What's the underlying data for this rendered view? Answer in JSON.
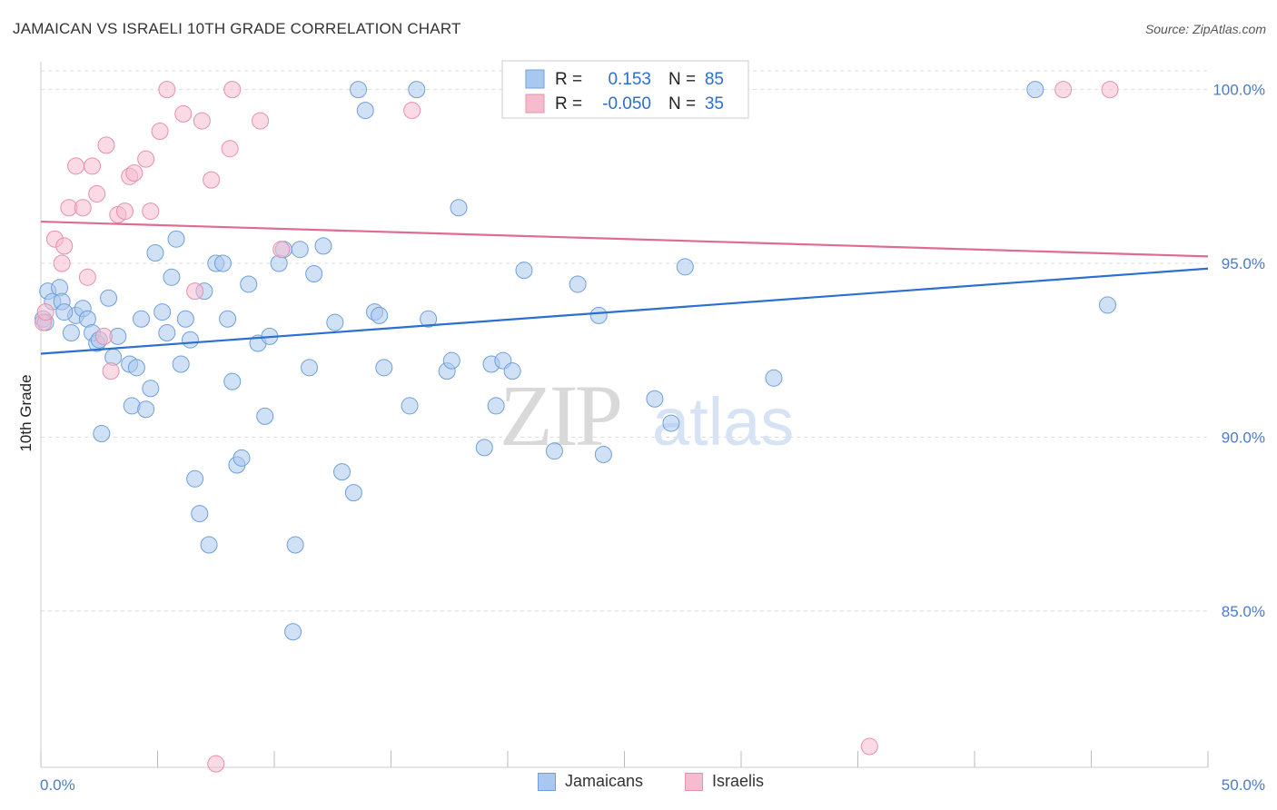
{
  "title": "JAMAICAN VS ISRAELI 10TH GRADE CORRELATION CHART",
  "source": "Source: ZipAtlas.com",
  "watermark": {
    "zip": "ZIP",
    "atlas": "atlas"
  },
  "colors": {
    "jamaicans_fill": "#a9c8ef",
    "jamaicans_stroke": "#6f9fdc",
    "jamaicans_line": "#2b6fd0",
    "israelis_fill": "#f5bccd",
    "israelis_stroke": "#e88fab",
    "israelis_line": "#e06a93",
    "tick_text": "#4a7cc8",
    "grid": "#dddddd"
  },
  "legend": {
    "rows": [
      {
        "r_label": "R =",
        "r_value": "0.153",
        "n_label": "N =",
        "n_value": "85"
      },
      {
        "r_label": "R =",
        "r_value": "-0.050",
        "n_label": "N =",
        "n_value": "35"
      }
    ]
  },
  "chart_data": {
    "type": "scatter",
    "title": "JAMAICAN VS ISRAELI 10TH GRADE CORRELATION CHART",
    "xlabel": "",
    "ylabel": "10th Grade",
    "xlim": [
      0,
      50
    ],
    "ylim": [
      80.5,
      100.8
    ],
    "x_tick_labels": [
      "0.0%",
      "50.0%"
    ],
    "y_ticks": [
      85,
      90,
      95,
      100
    ],
    "y_tick_labels": [
      "85.0%",
      "90.0%",
      "95.0%",
      "100.0%"
    ],
    "grid": true,
    "legend_position": "top-center",
    "series": [
      {
        "name": "Jamaicans",
        "r": 0.153,
        "n": 85,
        "trend": {
          "x": [
            0,
            50
          ],
          "y": [
            92.4,
            94.85
          ]
        },
        "points": [
          [
            0.1,
            93.4
          ],
          [
            0.3,
            94.2
          ],
          [
            0.5,
            93.9
          ],
          [
            0.8,
            94.3
          ],
          [
            0.9,
            93.9
          ],
          [
            1.3,
            93.0
          ],
          [
            1.5,
            93.5
          ],
          [
            1.8,
            93.7
          ],
          [
            2.0,
            93.4
          ],
          [
            2.2,
            93.0
          ],
          [
            2.4,
            92.7
          ],
          [
            2.6,
            90.1
          ],
          [
            2.9,
            94.0
          ],
          [
            3.1,
            92.3
          ],
          [
            3.3,
            92.9
          ],
          [
            3.8,
            92.1
          ],
          [
            3.9,
            90.9
          ],
          [
            4.1,
            92.0
          ],
          [
            4.3,
            93.4
          ],
          [
            4.5,
            90.8
          ],
          [
            4.7,
            91.4
          ],
          [
            4.9,
            95.3
          ],
          [
            5.2,
            93.6
          ],
          [
            5.4,
            93.0
          ],
          [
            5.6,
            94.6
          ],
          [
            5.8,
            95.7
          ],
          [
            6.0,
            92.1
          ],
          [
            6.2,
            93.4
          ],
          [
            6.4,
            92.8
          ],
          [
            6.6,
            88.8
          ],
          [
            6.8,
            87.8
          ],
          [
            7.0,
            94.2
          ],
          [
            7.2,
            86.9
          ],
          [
            7.5,
            95.0
          ],
          [
            7.8,
            95.0
          ],
          [
            8.0,
            93.4
          ],
          [
            8.2,
            91.6
          ],
          [
            8.4,
            89.2
          ],
          [
            8.6,
            89.4
          ],
          [
            8.9,
            94.4
          ],
          [
            9.3,
            92.7
          ],
          [
            9.6,
            90.6
          ],
          [
            9.8,
            92.9
          ],
          [
            10.2,
            95.0
          ],
          [
            10.4,
            95.4
          ],
          [
            10.8,
            84.4
          ],
          [
            10.9,
            86.9
          ],
          [
            11.1,
            95.4
          ],
          [
            11.5,
            92.0
          ],
          [
            11.7,
            94.7
          ],
          [
            12.1,
            95.5
          ],
          [
            12.6,
            93.3
          ],
          [
            12.9,
            89.0
          ],
          [
            13.4,
            88.4
          ],
          [
            13.6,
            100.0
          ],
          [
            13.9,
            99.4
          ],
          [
            14.3,
            93.6
          ],
          [
            14.5,
            93.5
          ],
          [
            14.7,
            92.0
          ],
          [
            15.8,
            90.9
          ],
          [
            16.1,
            100.0
          ],
          [
            16.6,
            93.4
          ],
          [
            17.4,
            91.9
          ],
          [
            17.6,
            92.2
          ],
          [
            17.9,
            96.6
          ],
          [
            19.0,
            89.7
          ],
          [
            19.3,
            92.1
          ],
          [
            19.5,
            90.9
          ],
          [
            19.8,
            92.2
          ],
          [
            20.2,
            91.9
          ],
          [
            20.7,
            94.8
          ],
          [
            22.0,
            89.6
          ],
          [
            23.0,
            94.4
          ],
          [
            23.9,
            93.5
          ],
          [
            24.1,
            89.5
          ],
          [
            26.3,
            91.1
          ],
          [
            27.0,
            90.4
          ],
          [
            27.4,
            100.0
          ],
          [
            27.6,
            94.9
          ],
          [
            31.4,
            91.7
          ],
          [
            42.6,
            100.0
          ],
          [
            45.7,
            93.8
          ],
          [
            0.2,
            93.3
          ],
          [
            1.0,
            93.6
          ],
          [
            2.5,
            92.8
          ]
        ]
      },
      {
        "name": "Israelis",
        "r": -0.05,
        "n": 35,
        "trend": {
          "x": [
            0,
            50
          ],
          "y": [
            96.2,
            95.2
          ]
        },
        "points": [
          [
            0.1,
            93.3
          ],
          [
            0.6,
            95.7
          ],
          [
            0.9,
            95.0
          ],
          [
            1.0,
            95.5
          ],
          [
            1.2,
            96.6
          ],
          [
            1.5,
            97.8
          ],
          [
            1.8,
            96.6
          ],
          [
            2.0,
            94.6
          ],
          [
            2.2,
            97.8
          ],
          [
            2.4,
            97.0
          ],
          [
            2.7,
            92.9
          ],
          [
            2.8,
            98.4
          ],
          [
            3.0,
            91.9
          ],
          [
            3.3,
            96.4
          ],
          [
            3.6,
            96.5
          ],
          [
            3.8,
            97.5
          ],
          [
            4.0,
            97.6
          ],
          [
            4.5,
            98.0
          ],
          [
            4.7,
            96.5
          ],
          [
            5.1,
            98.8
          ],
          [
            5.4,
            100.0
          ],
          [
            6.1,
            99.3
          ],
          [
            6.6,
            94.2
          ],
          [
            6.9,
            99.1
          ],
          [
            7.3,
            97.4
          ],
          [
            7.5,
            80.6
          ],
          [
            8.1,
            98.3
          ],
          [
            8.2,
            100.0
          ],
          [
            9.4,
            99.1
          ],
          [
            10.3,
            95.4
          ],
          [
            15.9,
            99.4
          ],
          [
            35.5,
            81.1
          ],
          [
            43.8,
            100.0
          ],
          [
            45.8,
            100.0
          ],
          [
            0.2,
            93.6
          ]
        ]
      }
    ]
  },
  "bottom_legend": {
    "items": [
      "Jamaicans",
      "Israelis"
    ]
  }
}
